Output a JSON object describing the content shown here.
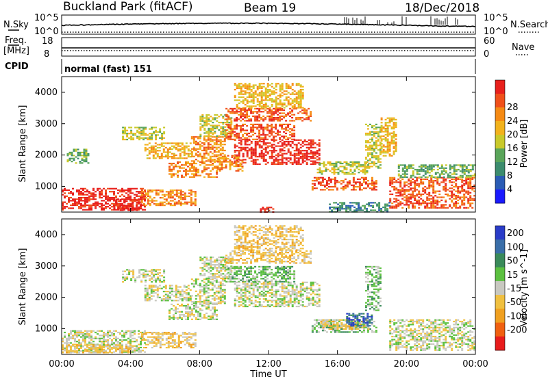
{
  "header": {
    "station": "Buckland Park (fitACF)",
    "beam": "Beam 19",
    "date": "18/Dec/2018"
  },
  "noise_panel": {
    "left_label": "N.Sky",
    "right_label": "N.Search",
    "left_ticks": [
      "10^5",
      "10^0"
    ],
    "right_ticks": [
      "10^5",
      "10^0"
    ]
  },
  "freq_panel": {
    "left_label": "Freq.",
    "left_unit": "[MHz]",
    "left_ticks": [
      "18",
      "8"
    ],
    "right_label": "Nave",
    "right_ticks": [
      "60",
      "0"
    ]
  },
  "cpid": {
    "label": "CPID",
    "value": "normal (fast) 151"
  },
  "chart_data": [
    {
      "type": "heatmap",
      "quantity": "Power",
      "ylabel": "Slant Range [km]",
      "xlabel": "Time UT",
      "ylim": [
        180,
        4500
      ],
      "xlim": [
        0,
        24
      ],
      "yticks": [
        "1000",
        "2000",
        "3000",
        "4000"
      ],
      "xticks": [
        "00:00",
        "04:00",
        "08:00",
        "12:00",
        "16:00",
        "20:00",
        "00:00"
      ],
      "colorbar": {
        "label": "Power [dB]",
        "ticks": [
          "4",
          "8",
          "12",
          "16",
          "20",
          "24",
          "28"
        ],
        "colors": [
          "#1a1aff",
          "#2a5cb4",
          "#3c8c6e",
          "#5aa55a",
          "#c9c92a",
          "#f2b21c",
          "#f58a14",
          "#f0501a",
          "#e8201c"
        ]
      },
      "regions": [
        {
          "t0": 0.0,
          "t1": 4.8,
          "r0": 250,
          "r1": 950,
          "level": 8
        },
        {
          "t0": 3.0,
          "t1": 4.6,
          "r0": 250,
          "r1": 600,
          "level": 8
        },
        {
          "t0": 4.6,
          "t1": 7.8,
          "r0": 400,
          "r1": 900,
          "level": 6
        },
        {
          "t0": 0.3,
          "t1": 1.5,
          "r0": 1750,
          "r1": 2200,
          "level": 3
        },
        {
          "t0": 3.5,
          "t1": 6.0,
          "r0": 2500,
          "r1": 2900,
          "level": 4
        },
        {
          "t0": 4.8,
          "t1": 7.5,
          "r0": 1900,
          "r1": 2400,
          "level": 5
        },
        {
          "t0": 6.2,
          "t1": 9.0,
          "r0": 1300,
          "r1": 1800,
          "level": 6
        },
        {
          "t0": 7.5,
          "t1": 9.5,
          "r0": 1800,
          "r1": 2600,
          "level": 6
        },
        {
          "t0": 8.0,
          "t1": 9.8,
          "r0": 2600,
          "r1": 3300,
          "level": 4
        },
        {
          "t0": 9.5,
          "t1": 14.5,
          "r0": 3100,
          "r1": 3500,
          "level": 7
        },
        {
          "t0": 9.5,
          "t1": 13.5,
          "r0": 2500,
          "r1": 3000,
          "level": 7
        },
        {
          "t0": 10.0,
          "t1": 15.0,
          "r0": 1700,
          "r1": 2500,
          "level": 8
        },
        {
          "t0": 9.0,
          "t1": 10.5,
          "r0": 1500,
          "r1": 2000,
          "level": 6
        },
        {
          "t0": 10.0,
          "t1": 14.0,
          "r0": 3500,
          "r1": 4300,
          "level": 5
        },
        {
          "t0": 14.8,
          "t1": 17.8,
          "r0": 1400,
          "r1": 1800,
          "level": 4
        },
        {
          "t0": 14.5,
          "t1": 18.3,
          "r0": 900,
          "r1": 1300,
          "level": 7
        },
        {
          "t0": 17.6,
          "t1": 18.5,
          "r0": 1600,
          "r1": 3000,
          "level": 4
        },
        {
          "t0": 18.5,
          "t1": 19.4,
          "r0": 2000,
          "r1": 3200,
          "level": 5
        },
        {
          "t0": 19.0,
          "t1": 24.0,
          "r0": 300,
          "r1": 1300,
          "level": 7
        },
        {
          "t0": 19.5,
          "t1": 24.0,
          "r0": 1300,
          "r1": 1700,
          "level": 3
        },
        {
          "t0": 15.5,
          "t1": 19.0,
          "r0": 180,
          "r1": 500,
          "level": 2
        },
        {
          "t0": 11.5,
          "t1": 12.3,
          "r0": 180,
          "r1": 350,
          "level": 8
        }
      ]
    },
    {
      "type": "heatmap",
      "quantity": "Velocity",
      "ylabel": "Slant Range [km]",
      "xlabel": "Time UT",
      "ylim": [
        180,
        4500
      ],
      "xlim": [
        0,
        24
      ],
      "yticks": [
        "1000",
        "2000",
        "3000",
        "4000"
      ],
      "xticks": [
        "00:00",
        "04:00",
        "08:00",
        "12:00",
        "16:00",
        "20:00",
        "00:00"
      ],
      "colorbar": {
        "label": "Velocity [m s^-1]",
        "ticks": [
          "200",
          "100",
          "50",
          "15",
          "-15",
          "-50",
          "-100",
          "-200"
        ],
        "colors": [
          "#2a3cc8",
          "#3a6ea8",
          "#3a8a5a",
          "#5cc040",
          "#c8c8c0",
          "#f0c040",
          "#f0a020",
          "#f06010",
          "#e81c1c"
        ]
      },
      "regions": [
        {
          "t0": 0.0,
          "t1": 4.8,
          "r0": 250,
          "r1": 950,
          "level": 4
        },
        {
          "t0": 0.0,
          "t1": 4.0,
          "r0": 250,
          "r1": 500,
          "level": 5
        },
        {
          "t0": 4.6,
          "t1": 7.8,
          "r0": 400,
          "r1": 900,
          "level": 5
        },
        {
          "t0": 3.5,
          "t1": 6.0,
          "r0": 2500,
          "r1": 2900,
          "level": 4
        },
        {
          "t0": 4.8,
          "t1": 7.5,
          "r0": 1900,
          "r1": 2400,
          "level": 4
        },
        {
          "t0": 6.2,
          "t1": 9.0,
          "r0": 1300,
          "r1": 1800,
          "level": 4
        },
        {
          "t0": 7.5,
          "t1": 9.5,
          "r0": 1800,
          "r1": 2600,
          "level": 4
        },
        {
          "t0": 8.0,
          "t1": 9.8,
          "r0": 2600,
          "r1": 3300,
          "level": 4
        },
        {
          "t0": 9.5,
          "t1": 14.5,
          "r0": 3100,
          "r1": 3500,
          "level": 5
        },
        {
          "t0": 9.5,
          "t1": 13.5,
          "r0": 2500,
          "r1": 3000,
          "level": 3
        },
        {
          "t0": 10.0,
          "t1": 15.0,
          "r0": 1700,
          "r1": 2500,
          "level": 4
        },
        {
          "t0": 14.5,
          "t1": 18.3,
          "r0": 900,
          "r1": 1300,
          "level": 3
        },
        {
          "t0": 15.0,
          "t1": 17.8,
          "r0": 1000,
          "r1": 1300,
          "level": 5
        },
        {
          "t0": 16.5,
          "t1": 18.0,
          "r0": 1100,
          "r1": 1500,
          "level": 1
        },
        {
          "t0": 17.6,
          "t1": 18.5,
          "r0": 1600,
          "r1": 3000,
          "level": 3
        },
        {
          "t0": 19.0,
          "t1": 24.0,
          "r0": 300,
          "r1": 1300,
          "level": 4
        },
        {
          "t0": 10.0,
          "t1": 14.0,
          "r0": 3500,
          "r1": 4300,
          "level": 5
        }
      ]
    }
  ]
}
